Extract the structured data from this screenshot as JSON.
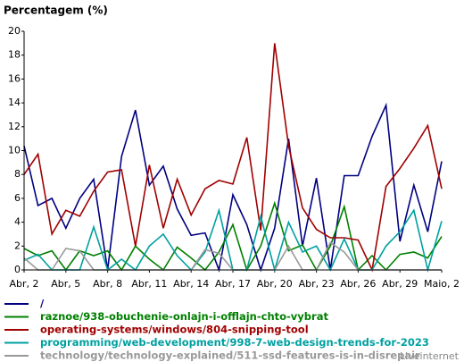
{
  "chart_data": {
    "type": "line",
    "title": "Percentagem (%)",
    "categories": [
      "Abr, 2",
      null,
      null,
      "Abr, 5",
      null,
      null,
      "Abr, 8",
      null,
      null,
      "Abr, 11",
      null,
      null,
      "Abr, 14",
      null,
      null,
      "Abr, 17",
      null,
      null,
      "Abr, 20",
      null,
      null,
      "Abr, 23",
      null,
      null,
      "Abr, 26",
      null,
      null,
      "Abr, 29",
      null,
      null,
      "Maio, 2"
    ],
    "ylim": [
      0,
      20
    ],
    "yticks": [
      0,
      2,
      4,
      6,
      8,
      10,
      12,
      14,
      16,
      18,
      20
    ],
    "series": [
      {
        "name": "/",
        "color": "#000080",
        "values": [
          10.4,
          5.4,
          6,
          3.5,
          6,
          7.6,
          0,
          9.5,
          13.4,
          7.1,
          8.7,
          5.1,
          2.9,
          3.1,
          0,
          6.3,
          3.8,
          0,
          3.5,
          11,
          2,
          7.7,
          0,
          7.9,
          7.9,
          11.2,
          13.8,
          2.4,
          7.1,
          3.2,
          9.1
        ]
      },
      {
        "name": "raznoe/938-obuchenie-onlajn-i-offlajn-chto-vybrat",
        "color": "#008000",
        "values": [
          1.8,
          1.2,
          1.6,
          0,
          1.6,
          1.2,
          1.6,
          0,
          2,
          0.9,
          0,
          1.9,
          1,
          0,
          1.5,
          3.8,
          0,
          2,
          5.6,
          1.6,
          2.1,
          0,
          2,
          5.3,
          0,
          1.2,
          0,
          1.3,
          1.5,
          1,
          2.8
        ]
      },
      {
        "name": "operating-systems/windows/804-snipping-tool",
        "color": "#a00000",
        "values": [
          8,
          9.7,
          3,
          5,
          4.5,
          6.6,
          8.2,
          8.4,
          2,
          8.8,
          3.5,
          7.6,
          4.6,
          6.8,
          7.5,
          7.2,
          11.1,
          3.3,
          19,
          10.4,
          5.2,
          3.4,
          2.7,
          2.7,
          2.5,
          0,
          7,
          8.5,
          10.2,
          12.1,
          6.8
        ]
      },
      {
        "name": "programming/web-development/998-7-web-design-trends-for-2023",
        "color": "#00a0a0",
        "values": [
          0.8,
          1.3,
          0,
          0,
          0,
          3.6,
          0,
          0.9,
          0,
          2,
          3,
          1.2,
          0,
          1.5,
          5,
          0,
          0,
          4.5,
          0,
          4,
          1.5,
          2,
          0,
          2.6,
          0,
          0,
          2,
          3.2,
          5,
          0,
          4.1
        ]
      },
      {
        "name": "technology/technology-explained/511-ssd-features-is-in-disrepair",
        "color": "#999999",
        "values": [
          1,
          0,
          0,
          1.8,
          1.6,
          0,
          0,
          0,
          0,
          0,
          0,
          0,
          0,
          1.7,
          1.4,
          0,
          0,
          0,
          0,
          2,
          0,
          0,
          2.3,
          1.5,
          0,
          0,
          0,
          0,
          0,
          0,
          0
        ]
      }
    ],
    "watermark": "Liveinternet"
  }
}
